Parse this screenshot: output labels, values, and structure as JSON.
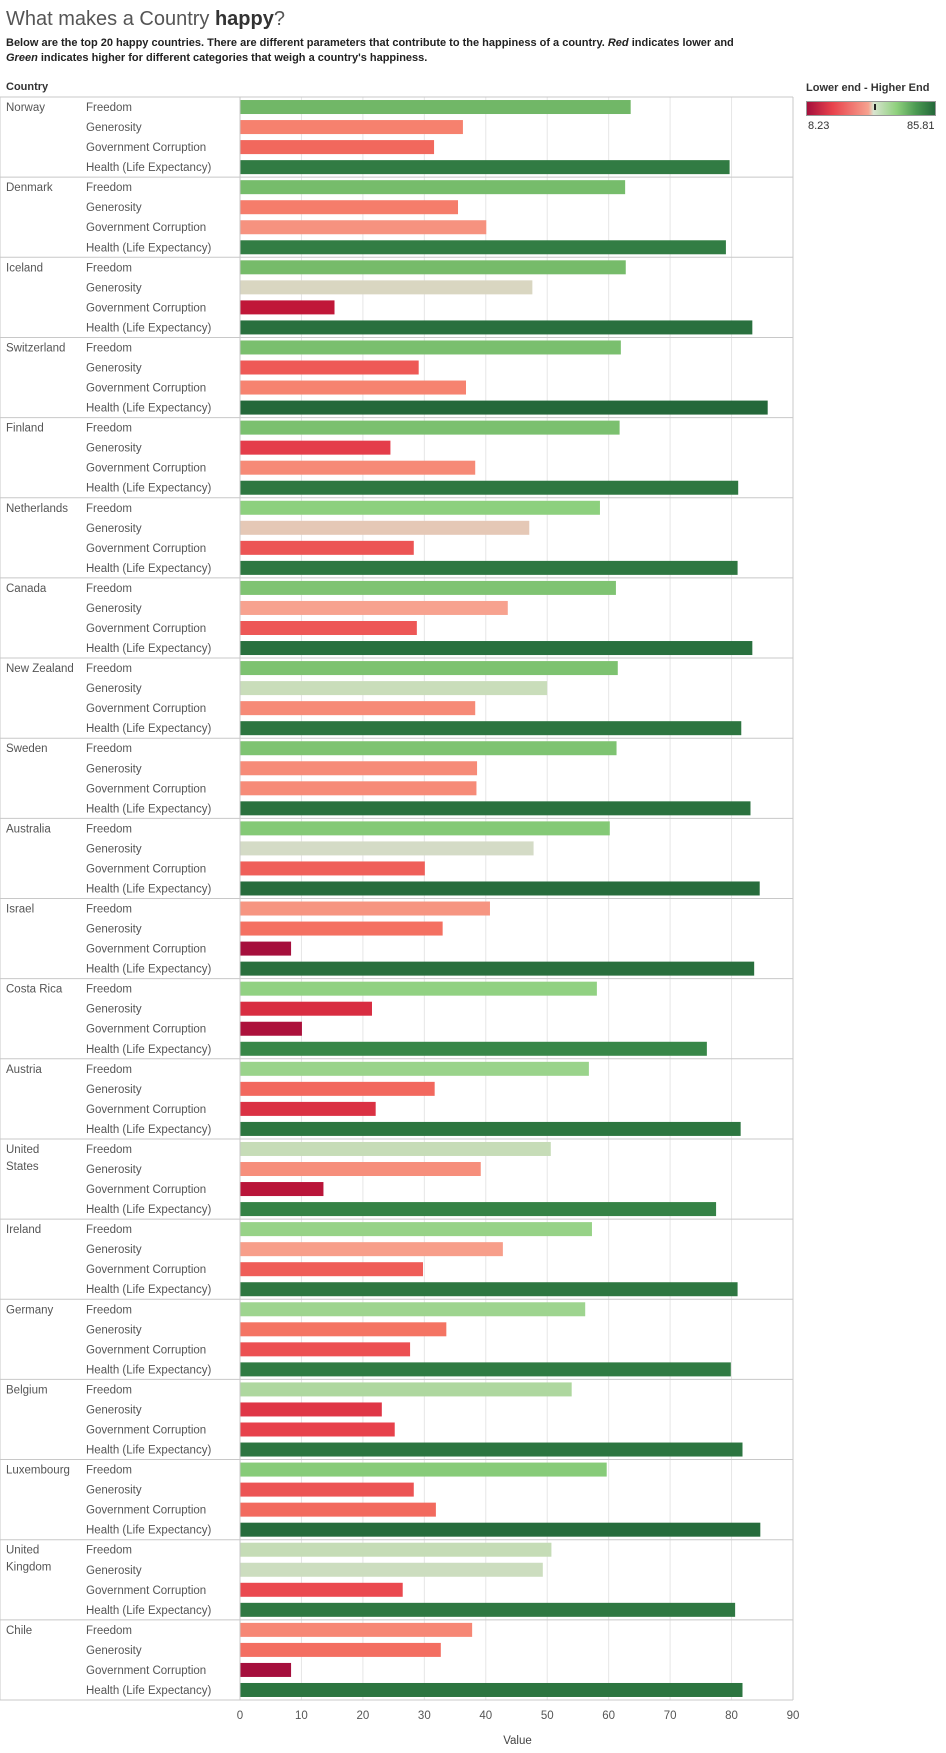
{
  "header": {
    "title_prefix": "What makes a Country ",
    "title_bold": "happy",
    "title_suffix": "?",
    "subtitle_part1": "Below are the top 20 happy countries. There are different parameters that contribute to the happiness of a country. ",
    "subtitle_red": "Red",
    "subtitle_part2": " indicates lower and ",
    "subtitle_green": "Green",
    "subtitle_part3": " indicates higher for different categories that weigh a country's happiness.",
    "column_header": "Country"
  },
  "legend": {
    "title": "Lower end - Higher End",
    "min_label": "8.23",
    "max_label": "85.81",
    "min": 8.23,
    "max": 85.81
  },
  "colors": {
    "low": "#a50f3c",
    "mid_low": "#f6a28f",
    "mid_high": "#cfdcc6",
    "high": "#24683a",
    "gridline": "#e6e6e6",
    "divider": "#c8c8c8"
  },
  "chart_data": {
    "type": "bar",
    "orientation": "horizontal",
    "title": "What makes a Country happy?",
    "xlabel": "Value",
    "ylabel": "Country",
    "xlim": [
      0,
      90
    ],
    "xticks": [
      0,
      10,
      20,
      30,
      40,
      50,
      60,
      70,
      80,
      90
    ],
    "grid": true,
    "categories": [
      "Freedom",
      "Generosity",
      "Government Corruption",
      "Health (Life Expectancy)"
    ],
    "countries": [
      {
        "name": "Norway",
        "name_lines": [
          "Norway"
        ],
        "values": [
          63.5,
          36.2,
          31.5,
          79.6
        ]
      },
      {
        "name": "Denmark",
        "name_lines": [
          "Denmark"
        ],
        "values": [
          62.6,
          35.4,
          40.0,
          79.0
        ]
      },
      {
        "name": "Iceland",
        "name_lines": [
          "Iceland"
        ],
        "values": [
          62.7,
          47.5,
          15.3,
          83.3
        ]
      },
      {
        "name": "Switzerland",
        "name_lines": [
          "Switzerland"
        ],
        "values": [
          61.9,
          29.0,
          36.7,
          85.8
        ]
      },
      {
        "name": "Finland",
        "name_lines": [
          "Finland"
        ],
        "values": [
          61.7,
          24.4,
          38.2,
          81.0
        ]
      },
      {
        "name": "Netherlands",
        "name_lines": [
          "Netherlands"
        ],
        "values": [
          58.5,
          47.0,
          28.2,
          80.9
        ]
      },
      {
        "name": "Canada",
        "name_lines": [
          "Canada"
        ],
        "values": [
          61.1,
          43.5,
          28.7,
          83.3
        ]
      },
      {
        "name": "New Zealand",
        "name_lines": [
          "New Zealand"
        ],
        "values": [
          61.4,
          49.9,
          38.2,
          81.5
        ]
      },
      {
        "name": "Sweden",
        "name_lines": [
          "Sweden"
        ],
        "values": [
          61.2,
          38.5,
          38.4,
          83.0
        ]
      },
      {
        "name": "Australia",
        "name_lines": [
          "Australia"
        ],
        "values": [
          60.1,
          47.7,
          30.0,
          84.5
        ]
      },
      {
        "name": "Israel",
        "name_lines": [
          "Israel"
        ],
        "values": [
          40.6,
          32.9,
          8.23,
          83.6
        ]
      },
      {
        "name": "Costa Rica",
        "name_lines": [
          "Costa Rica"
        ],
        "values": [
          58.0,
          21.4,
          10.0,
          75.9
        ]
      },
      {
        "name": "Austria",
        "name_lines": [
          "Austria"
        ],
        "values": [
          56.7,
          31.6,
          22.0,
          81.4
        ]
      },
      {
        "name": "United States",
        "name_lines": [
          "United",
          "States"
        ],
        "values": [
          50.5,
          39.1,
          13.5,
          77.4
        ]
      },
      {
        "name": "Ireland",
        "name_lines": [
          "Ireland"
        ],
        "values": [
          57.2,
          42.7,
          29.7,
          80.9
        ]
      },
      {
        "name": "Germany",
        "name_lines": [
          "Germany"
        ],
        "values": [
          56.1,
          33.5,
          27.6,
          79.8
        ]
      },
      {
        "name": "Belgium",
        "name_lines": [
          "Belgium"
        ],
        "values": [
          53.9,
          23.0,
          25.1,
          81.7
        ]
      },
      {
        "name": "Luxembourg",
        "name_lines": [
          "Luxembourg"
        ],
        "values": [
          59.6,
          28.2,
          31.8,
          84.6
        ]
      },
      {
        "name": "United Kingdom",
        "name_lines": [
          "United",
          "Kingdom"
        ],
        "values": [
          50.6,
          49.2,
          26.4,
          80.5
        ]
      },
      {
        "name": "Chile",
        "name_lines": [
          "Chile"
        ],
        "values": [
          37.7,
          32.6,
          8.23,
          81.7
        ]
      }
    ]
  }
}
